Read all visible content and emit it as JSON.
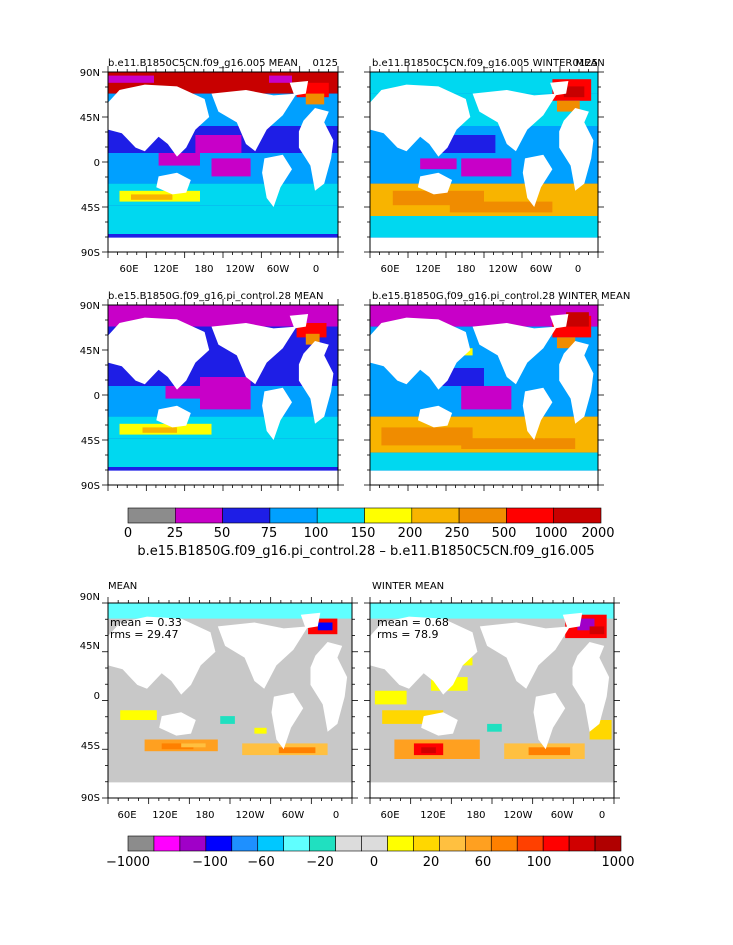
{
  "colors": {
    "top_scale": [
      "#8c8c8c",
      "#c800c8",
      "#1e1ee6",
      "#00a0ff",
      "#00d8f0",
      "#ffff00",
      "#f8b400",
      "#f08c00",
      "#ff0000",
      "#c80000"
    ],
    "diff_scale": [
      "#8c8c8c",
      "#ff00ff",
      "#a000c8",
      "#0000ff",
      "#1e90ff",
      "#00c8ff",
      "#60ffff",
      "#20e0c0",
      "#dcdcdc",
      "#dcdcdc",
      "#ffff00",
      "#ffd700",
      "#ffc040",
      "#ffa020",
      "#ff8000",
      "#ff4000",
      "#ff0000",
      "#d00000",
      "#b00000"
    ],
    "land": "#ffffff",
    "ocean_fill_top": "#1e1ee6",
    "ocean_fill_diff": "#c8c8c8"
  },
  "chart_data": [
    {
      "type": "heatmap",
      "title": "b.e11.B1850C5CN.f09_g16.005 MEAN",
      "corner_label": "0125",
      "y_ticks": [
        "90N",
        "45N",
        "0",
        "45S",
        "90S"
      ],
      "x_ticks": [
        "60E",
        "120E",
        "180",
        "120W",
        "60W",
        "0"
      ]
    },
    {
      "type": "heatmap",
      "title": "b.e11.B1850C5CN.f09_g16.005 WINTER MEAN",
      "corner_label": "0125",
      "x_ticks": [
        "60E",
        "120E",
        "180",
        "120W",
        "60W",
        "0"
      ]
    },
    {
      "type": "heatmap",
      "title": "b.e15.B1850G.f09_g16.pi_control.28 MEAN",
      "y_ticks": [
        "90N",
        "45N",
        "0",
        "45S",
        "90S"
      ]
    },
    {
      "type": "heatmap",
      "title": "b.e15.B1850G.f09_g16.pi_control.28 WINTER MEAN"
    },
    {
      "type": "heatmap",
      "title": "MEAN",
      "stats": {
        "mean": "mean = 0.33",
        "rms": "rms = 29.47"
      },
      "y_ticks": [
        "90N",
        "45N",
        "0",
        "45S",
        "90S"
      ],
      "x_ticks": [
        "60E",
        "120E",
        "180",
        "120W",
        "60W",
        "0"
      ]
    },
    {
      "type": "heatmap",
      "title": "WINTER MEAN",
      "stats": {
        "mean": "mean = 0.68",
        "rms": "rms = 78.9"
      },
      "x_ticks": [
        "60E",
        "120E",
        "180",
        "120W",
        "60W",
        "0"
      ]
    }
  ],
  "colorbar_top": {
    "labels": [
      "0",
      "25",
      "50",
      "75",
      "100",
      "150",
      "200",
      "250",
      "500",
      "1000",
      "2000"
    ]
  },
  "colorbar_diff": {
    "labels": [
      "−1000",
      "−100",
      "−60",
      "−20",
      "0",
      "20",
      "60",
      "100",
      "1000"
    ]
  },
  "difference_title": "b.e15.B1850G.f09_g16.pi_control.28 – b.e11.B1850C5CN.f09_g16.005"
}
